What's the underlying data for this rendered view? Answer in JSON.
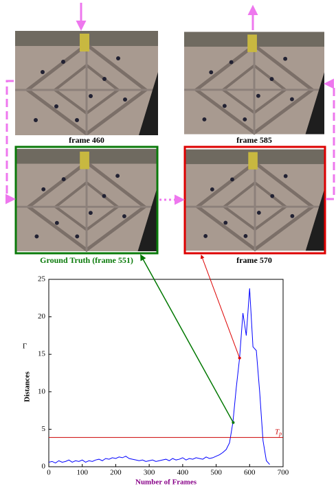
{
  "panels": [
    {
      "label": "frame 460"
    },
    {
      "label": "frame 585"
    },
    {
      "label": "Ground Truth (frame 551)"
    },
    {
      "label": "frame 570"
    }
  ],
  "chart_data": {
    "type": "line",
    "x_label": "Number of Frames",
    "y_label": "Distances",
    "y_symbol": "Γ",
    "x": [
      0,
      10,
      20,
      30,
      40,
      50,
      60,
      70,
      80,
      90,
      100,
      110,
      120,
      130,
      140,
      150,
      160,
      170,
      180,
      190,
      200,
      210,
      220,
      230,
      240,
      250,
      260,
      270,
      280,
      290,
      300,
      310,
      320,
      330,
      340,
      350,
      360,
      370,
      380,
      390,
      400,
      410,
      420,
      430,
      440,
      450,
      460,
      470,
      480,
      490,
      500,
      510,
      520,
      530,
      540,
      550,
      560,
      570,
      580,
      590,
      600,
      610,
      620,
      630,
      640,
      650,
      660
    ],
    "series": [
      {
        "color": "#0000ff",
        "values": [
          0.6,
          0.7,
          0.5,
          0.8,
          0.6,
          0.7,
          0.9,
          0.6,
          0.8,
          0.7,
          0.9,
          0.6,
          0.8,
          0.7,
          0.9,
          1.0,
          0.8,
          1.1,
          1.0,
          1.2,
          1.1,
          1.3,
          1.2,
          1.4,
          1.1,
          1.0,
          0.9,
          0.8,
          0.9,
          0.7,
          0.8,
          0.9,
          0.7,
          0.8,
          0.9,
          1.0,
          0.8,
          1.1,
          0.9,
          1.0,
          1.2,
          0.9,
          1.1,
          1.0,
          1.2,
          1.1,
          1.0,
          1.3,
          1.1,
          1.2,
          1.4,
          1.6,
          1.9,
          2.3,
          3.2,
          5.9,
          10.5,
          14.5,
          20.5,
          17.5,
          23.8,
          16.0,
          15.5,
          10.0,
          3.5,
          0.8,
          0.3
        ]
      }
    ],
    "highlights": [
      {
        "x": 551,
        "y": 5.9,
        "color": "#007700"
      },
      {
        "x": 570,
        "y": 14.5,
        "color": "#dd0000"
      }
    ],
    "threshold": {
      "value": 3.9,
      "label": "T",
      "subscript": "p",
      "color": "#cc0000"
    },
    "xlim": [
      0,
      700
    ],
    "xticks": [
      0,
      100,
      200,
      300,
      400,
      500,
      600,
      700
    ],
    "ylim": [
      0,
      25
    ],
    "yticks": [
      0,
      5,
      10,
      15,
      20,
      25
    ]
  }
}
